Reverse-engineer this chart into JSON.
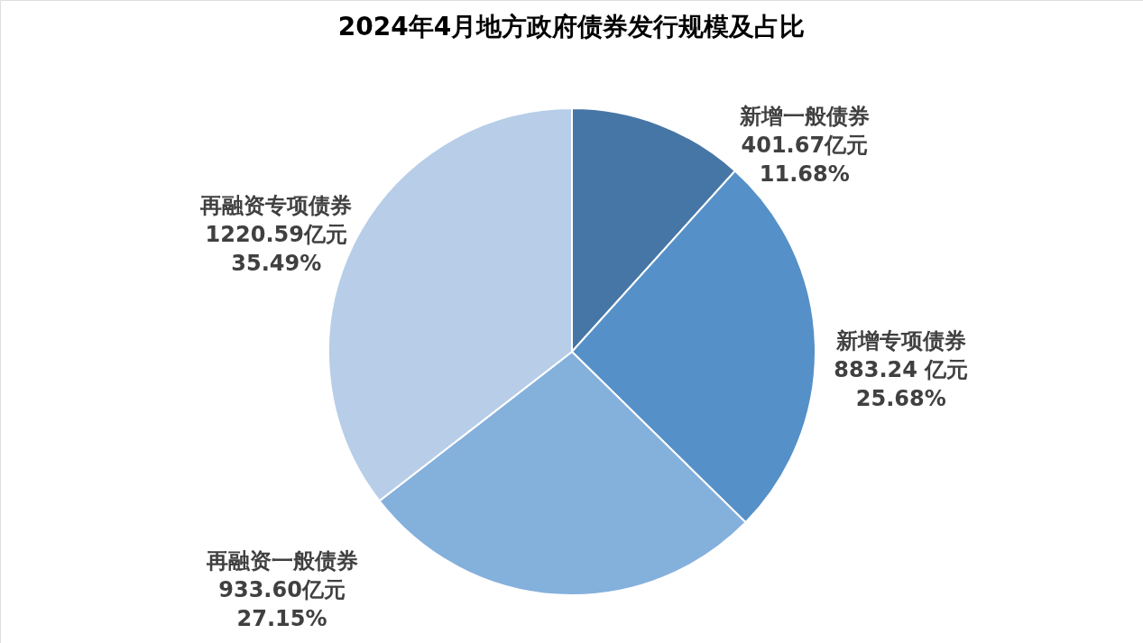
{
  "chart_data": {
    "type": "pie",
    "title": "2024年4月地方政府债券发行规模及占比",
    "categories": [
      "新增一般债券",
      "新增专项债券",
      "再融资一般债券",
      "再融资专项债券"
    ],
    "values": [
      401.67,
      883.24,
      933.6,
      1220.59
    ],
    "value_labels": [
      "401.67亿元\n11.68%",
      "883.24 亿元\n25.68%",
      "933.60亿元\n27.15%",
      "1220.59亿元\n35.49%"
    ],
    "colors": [
      "#4676a6",
      "#5590c8",
      "#84b0dc",
      "#b7cde8"
    ]
  }
}
